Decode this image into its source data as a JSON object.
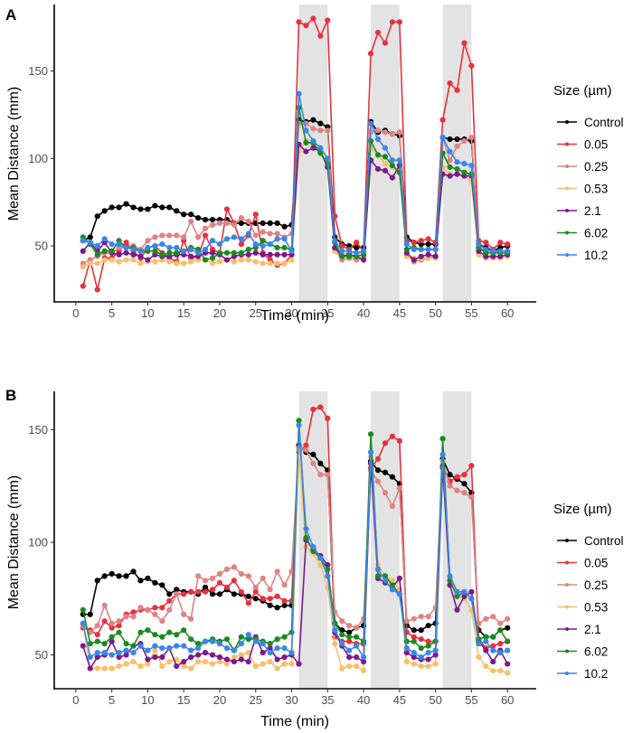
{
  "chart_data": [
    {
      "panel": "A",
      "type": "line",
      "title": "",
      "xlabel": "Time (min)",
      "ylabel": "Mean Distance (mm)",
      "xlim": [
        -3,
        64
      ],
      "ylim": [
        18,
        188
      ],
      "xticks": [
        0,
        5,
        10,
        15,
        20,
        25,
        30,
        35,
        40,
        45,
        50,
        55,
        60
      ],
      "yticks": [
        50,
        100,
        150
      ],
      "grid": false,
      "shaded_intervals": [
        [
          31,
          35
        ],
        [
          41,
          45
        ],
        [
          51,
          55
        ]
      ],
      "legend": {
        "title": "Size (µm)",
        "placement": "right"
      },
      "x": [
        1,
        2,
        3,
        4,
        5,
        6,
        7,
        8,
        9,
        10,
        11,
        12,
        13,
        14,
        15,
        16,
        17,
        18,
        19,
        20,
        21,
        22,
        23,
        24,
        25,
        26,
        27,
        28,
        29,
        30,
        31,
        32,
        33,
        34,
        35,
        36,
        37,
        38,
        39,
        40,
        41,
        42,
        43,
        44,
        45,
        46,
        47,
        48,
        49,
        50,
        51,
        52,
        53,
        54,
        55,
        56,
        57,
        58,
        59,
        60
      ],
      "series": [
        {
          "name": "Control",
          "color": "#000000",
          "values": [
            53,
            55,
            67,
            70,
            72,
            72,
            74,
            72,
            71,
            71,
            73,
            72,
            72,
            70,
            68,
            68,
            66,
            65,
            65,
            65,
            65,
            63,
            63,
            63,
            63,
            63,
            63,
            63,
            61,
            62,
            122,
            121,
            122,
            120,
            118,
            55,
            51,
            50,
            49,
            49,
            121,
            115,
            116,
            114,
            113,
            55,
            52,
            51,
            51,
            51,
            112,
            111,
            111,
            111,
            110,
            51,
            49,
            47,
            49,
            50
          ]
        },
        {
          "name": "0.05",
          "color": "#e8303e",
          "values": [
            27,
            42,
            25,
            43,
            43,
            47,
            52,
            47,
            43,
            49,
            50,
            46,
            43,
            41,
            53,
            43,
            44,
            56,
            48,
            46,
            71,
            63,
            51,
            56,
            68,
            46,
            42,
            39,
            40,
            45,
            178,
            176,
            180,
            170,
            179,
            67,
            50,
            48,
            52,
            47,
            160,
            172,
            166,
            178,
            178,
            53,
            52,
            53,
            54,
            52,
            122,
            143,
            139,
            166,
            153,
            53,
            52,
            48,
            52,
            51
          ]
        },
        {
          "name": "0.25",
          "color": "#e08283",
          "values": [
            40,
            42,
            44,
            46,
            46,
            49,
            49,
            50,
            48,
            53,
            55,
            56,
            56,
            56,
            55,
            64,
            55,
            60,
            62,
            63,
            63,
            62,
            66,
            64,
            56,
            58,
            57,
            57,
            55,
            57,
            120,
            120,
            117,
            116,
            116,
            48,
            42,
            43,
            42,
            43,
            115,
            116,
            115,
            114,
            115,
            45,
            41,
            42,
            43,
            44,
            112,
            99,
            107,
            110,
            112,
            49,
            47,
            47,
            46,
            46
          ]
        },
        {
          "name": "0.53",
          "color": "#f5c06c",
          "values": [
            38,
            40,
            40,
            42,
            42,
            41,
            42,
            42,
            40,
            41,
            41,
            42,
            41,
            40,
            40,
            41,
            42,
            42,
            40,
            41,
            42,
            41,
            42,
            42,
            41,
            40,
            40,
            40,
            40,
            42,
            104,
            110,
            108,
            104,
            97,
            47,
            45,
            46,
            46,
            46,
            106,
            102,
            97,
            95,
            92,
            44,
            43,
            43,
            43,
            43,
            95,
            91,
            91,
            90,
            87,
            45,
            43,
            43,
            43,
            44
          ]
        },
        {
          "name": "2.1",
          "color": "#7b1a8c",
          "values": [
            47,
            52,
            47,
            52,
            46,
            45,
            46,
            45,
            44,
            42,
            45,
            44,
            44,
            45,
            45,
            44,
            44,
            46,
            46,
            45,
            42,
            44,
            45,
            45,
            46,
            45,
            45,
            45,
            45,
            45,
            108,
            104,
            106,
            104,
            95,
            49,
            44,
            45,
            44,
            42,
            99,
            94,
            93,
            89,
            96,
            46,
            42,
            44,
            45,
            44,
            91,
            90,
            91,
            90,
            90,
            47,
            44,
            44,
            44,
            45
          ]
        },
        {
          "name": "6.02",
          "color": "#1a8a1f",
          "values": [
            55,
            51,
            45,
            47,
            47,
            53,
            49,
            49,
            47,
            47,
            47,
            45,
            46,
            46,
            47,
            49,
            48,
            42,
            43,
            46,
            46,
            46,
            46,
            48,
            49,
            53,
            51,
            49,
            49,
            48,
            129,
            109,
            109,
            103,
            97,
            52,
            44,
            44,
            44,
            45,
            110,
            102,
            101,
            96,
            92,
            48,
            49,
            48,
            48,
            48,
            103,
            95,
            94,
            92,
            91,
            49,
            46,
            46,
            46,
            46
          ]
        },
        {
          "name": "10.2",
          "color": "#3a86e8",
          "values": [
            53,
            52,
            50,
            54,
            51,
            51,
            49,
            48,
            47,
            49,
            50,
            51,
            49,
            49,
            47,
            48,
            46,
            48,
            53,
            51,
            54,
            55,
            54,
            57,
            51,
            50,
            51,
            54,
            54,
            47,
            137,
            116,
            110,
            106,
            100,
            53,
            47,
            47,
            46,
            47,
            120,
            111,
            106,
            99,
            99,
            51,
            48,
            48,
            48,
            48,
            112,
            104,
            98,
            97,
            96,
            51,
            48,
            47,
            47,
            47
          ]
        }
      ]
    },
    {
      "panel": "B",
      "type": "line",
      "title": "",
      "xlabel": "Time (min)",
      "ylabel": "Mean Distance (mm)",
      "xlim": [
        -3,
        64
      ],
      "ylim": [
        35,
        167
      ],
      "xticks": [
        0,
        5,
        10,
        15,
        20,
        25,
        30,
        35,
        40,
        45,
        50,
        55,
        60
      ],
      "yticks": [
        50,
        100,
        150
      ],
      "grid": false,
      "shaded_intervals": [
        [
          31,
          35
        ],
        [
          41,
          45
        ],
        [
          51,
          55
        ]
      ],
      "legend": {
        "title": "Size (µm)",
        "placement": "right"
      },
      "x": [
        1,
        2,
        3,
        4,
        5,
        6,
        7,
        8,
        9,
        10,
        11,
        12,
        13,
        14,
        15,
        16,
        17,
        18,
        19,
        20,
        21,
        22,
        23,
        24,
        25,
        26,
        27,
        28,
        29,
        30,
        31,
        32,
        33,
        34,
        35,
        36,
        37,
        38,
        39,
        40,
        41,
        42,
        43,
        44,
        45,
        46,
        47,
        48,
        49,
        50,
        51,
        52,
        53,
        54,
        55,
        56,
        57,
        58,
        59,
        60
      ],
      "series": [
        {
          "name": "Control",
          "color": "#000000",
          "values": [
            68,
            68,
            83,
            85,
            86,
            85,
            85,
            87,
            83,
            84,
            82,
            81,
            77,
            79,
            78,
            78,
            77,
            80,
            77,
            77,
            79,
            77,
            77,
            76,
            75,
            74,
            72,
            71,
            72,
            72,
            143,
            140,
            139,
            135,
            132,
            64,
            61,
            60,
            62,
            63,
            136,
            132,
            131,
            129,
            126,
            63,
            61,
            61,
            63,
            64,
            137,
            130,
            128,
            126,
            122,
            61,
            58,
            58,
            61,
            62
          ]
        },
        {
          "name": "0.05",
          "color": "#e8303e",
          "values": [
            62,
            61,
            59,
            65,
            62,
            63,
            68,
            69,
            70,
            70,
            71,
            71,
            74,
            77,
            77,
            78,
            78,
            78,
            79,
            82,
            80,
            83,
            78,
            73,
            78,
            75,
            75,
            76,
            74,
            74,
            140,
            143,
            159,
            160,
            155,
            58,
            56,
            56,
            55,
            55,
            133,
            137,
            144,
            147,
            145,
            60,
            58,
            57,
            56,
            56,
            133,
            127,
            129,
            130,
            134,
            57,
            53,
            54,
            55,
            56
          ]
        },
        {
          "name": "0.25",
          "color": "#e08283",
          "values": [
            63,
            60,
            63,
            72,
            64,
            65,
            67,
            67,
            71,
            70,
            68,
            65,
            70,
            77,
            68,
            66,
            85,
            83,
            84,
            86,
            88,
            89,
            86,
            85,
            80,
            84,
            79,
            87,
            81,
            87,
            142,
            141,
            135,
            130,
            130,
            69,
            65,
            63,
            62,
            66,
            132,
            127,
            122,
            116,
            124,
            65,
            66,
            67,
            67,
            71,
            136,
            125,
            123,
            122,
            120,
            64,
            66,
            67,
            64,
            66
          ]
        },
        {
          "name": "0.53",
          "color": "#f5c06c",
          "values": [
            64,
            44,
            44,
            44,
            44,
            45,
            46,
            47,
            45,
            46,
            52,
            45,
            47,
            48,
            45,
            44,
            47,
            47,
            46,
            47,
            46,
            49,
            50,
            51,
            45,
            46,
            47,
            44,
            46,
            46,
            141,
            98,
            95,
            90,
            80,
            55,
            44,
            45,
            45,
            43,
            138,
            90,
            85,
            83,
            79,
            47,
            46,
            45,
            45,
            46,
            136,
            84,
            77,
            75,
            70,
            49,
            45,
            43,
            43,
            42
          ]
        },
        {
          "name": "2.1",
          "color": "#7b1a8c",
          "values": [
            54,
            44,
            49,
            50,
            56,
            49,
            50,
            54,
            55,
            48,
            49,
            49,
            53,
            45,
            47,
            49,
            50,
            51,
            50,
            49,
            48,
            47,
            48,
            47,
            58,
            51,
            53,
            48,
            49,
            50,
            46,
            101,
            97,
            94,
            90,
            60,
            54,
            49,
            49,
            47,
            135,
            84,
            82,
            80,
            84,
            51,
            49,
            48,
            48,
            50,
            134,
            81,
            70,
            76,
            78,
            56,
            52,
            47,
            52,
            46
          ]
        },
        {
          "name": "6.02",
          "color": "#1a8a1f",
          "values": [
            70,
            55,
            56,
            55,
            58,
            60,
            55,
            54,
            60,
            61,
            59,
            58,
            60,
            59,
            61,
            57,
            55,
            56,
            57,
            56,
            57,
            52,
            58,
            57,
            57,
            56,
            55,
            57,
            58,
            60,
            154,
            102,
            96,
            93,
            88,
            64,
            59,
            58,
            58,
            56,
            148,
            85,
            85,
            81,
            77,
            56,
            56,
            53,
            54,
            56,
            146,
            83,
            76,
            78,
            75,
            57,
            58,
            58,
            61,
            56
          ]
        },
        {
          "name": "10.2",
          "color": "#3a86e8",
          "values": [
            64,
            49,
            51,
            51,
            50,
            51,
            52,
            51,
            54,
            52,
            54,
            53,
            53,
            54,
            54,
            52,
            53,
            56,
            56,
            55,
            53,
            52,
            55,
            59,
            56,
            55,
            51,
            53,
            53,
            51,
            152,
            106,
            98,
            93,
            85,
            61,
            55,
            52,
            54,
            49,
            140,
            88,
            83,
            79,
            77,
            53,
            51,
            49,
            51,
            52,
            139,
            85,
            78,
            78,
            75,
            55,
            56,
            52,
            51,
            52
          ]
        }
      ]
    }
  ],
  "panels": [
    {
      "letter": "A",
      "xlabel": "Time (min)",
      "ylabel": "Mean Distance (mm)",
      "legend_title": "Size (µm)"
    },
    {
      "letter": "B",
      "xlabel": "Time (min)",
      "ylabel": "Mean Distance (mm)",
      "legend_title": "Size (µm)"
    }
  ]
}
